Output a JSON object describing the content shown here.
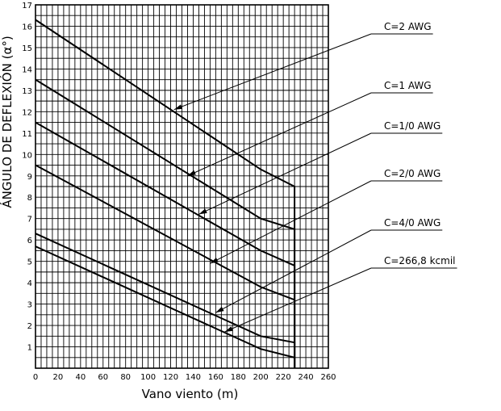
{
  "chart_data": {
    "type": "line",
    "xlabel": "Vano viento (m)",
    "ylabel": "ÁNGULO DE DEFLEXIÓN (α°)",
    "xlim": [
      0,
      260
    ],
    "ylim": [
      0,
      17
    ],
    "x_ticks": [
      0,
      20,
      40,
      60,
      80,
      100,
      120,
      140,
      160,
      180,
      200,
      220,
      240,
      260
    ],
    "y_ticks": [
      1,
      2,
      3,
      4,
      5,
      6,
      7,
      8,
      9,
      10,
      11,
      12,
      13,
      14,
      15,
      16,
      17
    ],
    "grid": true,
    "limit_line_x": 230,
    "series": [
      {
        "name": "C=2 AWG",
        "x": [
          0,
          200,
          230,
          230
        ],
        "y": [
          16.3,
          9.3,
          8.5,
          0
        ],
        "arrow_target": [
          123,
          12.1
        ]
      },
      {
        "name": "C=1 AWG",
        "x": [
          0,
          200,
          230,
          230
        ],
        "y": [
          13.5,
          7.0,
          6.5,
          0
        ],
        "arrow_target": [
          135,
          9.0
        ]
      },
      {
        "name": "C=1/0 AWG",
        "x": [
          0,
          200,
          230,
          230
        ],
        "y": [
          11.5,
          5.5,
          4.8,
          0
        ],
        "arrow_target": [
          145,
          7.2
        ]
      },
      {
        "name": "C=2/0 AWG",
        "x": [
          0,
          200,
          230,
          230
        ],
        "y": [
          9.5,
          3.8,
          3.2,
          0
        ],
        "arrow_target": [
          155,
          4.9
        ]
      },
      {
        "name": "C=4/0 AWG",
        "x": [
          0,
          200,
          230,
          230
        ],
        "y": [
          6.3,
          1.5,
          1.2,
          0
        ],
        "arrow_target": [
          160,
          2.6
        ]
      },
      {
        "name": "C=266,8 kcmil",
        "x": [
          0,
          200,
          230,
          230
        ],
        "y": [
          5.7,
          0.9,
          0.5,
          0
        ],
        "arrow_target": [
          168,
          1.7
        ]
      }
    ]
  }
}
